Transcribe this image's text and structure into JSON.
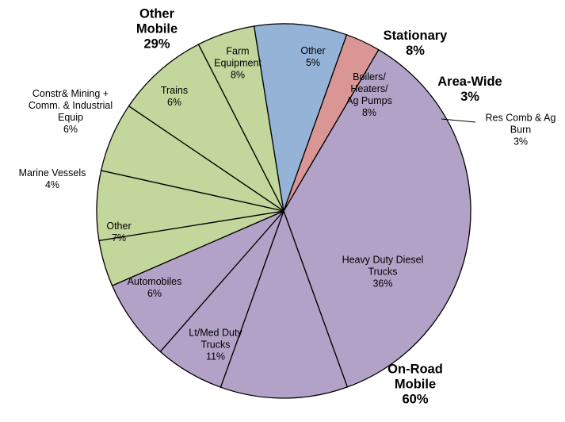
{
  "chart_data": {
    "type": "pie",
    "colors": {
      "on_road": "#b3a2c7",
      "other_mobile": "#c3d69b",
      "stationary": "#95b3d7",
      "area_wide": "#d99694"
    },
    "slices": [
      {
        "lines": [
          "Heavy Duty Diesel",
          "Trucks",
          "36%"
        ],
        "value": 36,
        "group": "on_road"
      },
      {
        "lines": [
          "Lt/Med Duty",
          "Trucks",
          "11%"
        ],
        "value": 11,
        "group": "on_road"
      },
      {
        "lines": [
          "Automobiles",
          "6%"
        ],
        "value": 6,
        "group": "on_road"
      },
      {
        "lines": [
          "Other",
          "7%"
        ],
        "value": 7,
        "group": "on_road"
      },
      {
        "lines": [
          "Marine Vessels",
          "4%"
        ],
        "value": 4,
        "group": "other_mobile"
      },
      {
        "lines": [
          "Constr& Mining +",
          "Comm. & Industrial",
          "Equip",
          "6%"
        ],
        "value": 6,
        "group": "other_mobile"
      },
      {
        "lines": [
          "Trains",
          "6%"
        ],
        "value": 6,
        "group": "other_mobile"
      },
      {
        "lines": [
          "Farm",
          "Equipment",
          "8%"
        ],
        "value": 8,
        "group": "other_mobile"
      },
      {
        "lines": [
          "Other",
          "5%"
        ],
        "value": 5,
        "group": "other_mobile"
      },
      {
        "lines": [
          "Boilers/",
          "Heaters/",
          "Ag Pumps",
          "8%"
        ],
        "value": 8,
        "group": "stationary"
      },
      {
        "lines": [
          "Res Comb & Ag",
          "Burn",
          "3%"
        ],
        "value": 3,
        "group": "area_wide"
      }
    ],
    "groups": [
      {
        "lines": [
          "On-Road",
          "Mobile",
          "60%"
        ],
        "value": 60
      },
      {
        "lines": [
          "Other",
          "Mobile",
          "29%"
        ],
        "value": 29
      },
      {
        "lines": [
          "Stationary",
          "8%"
        ],
        "value": 8
      },
      {
        "lines": [
          "Area-Wide",
          "3%"
        ],
        "value": 3
      }
    ]
  }
}
